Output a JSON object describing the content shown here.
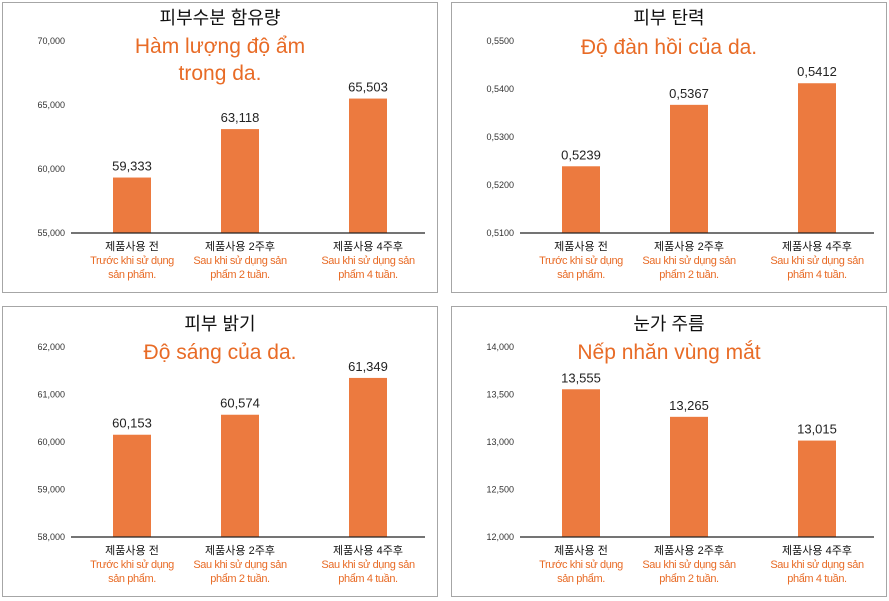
{
  "colors": {
    "bar": "#ec7a3f",
    "title_vi": "#e86b26",
    "axis": "#222222"
  },
  "chart_data": [
    {
      "type": "bar",
      "title": "피부수분 함유량",
      "subtitle": [
        "Hàm lượng độ ẩm",
        "trong da."
      ],
      "categories": [
        {
          "ko": "제품사용 전",
          "vi": [
            "Trước khi sử dụng",
            "sản phẩm."
          ]
        },
        {
          "ko": "제품사용 2주후",
          "vi": [
            "Sau khi sử dụng sản",
            "phẩm 2 tuần."
          ]
        },
        {
          "ko": "제품사용 4주후",
          "vi": [
            "Sau khi sử dụng sản",
            "phẩm 4 tuần."
          ]
        }
      ],
      "values": [
        59333,
        63118,
        65503
      ],
      "value_labels": [
        "59,333",
        "63,118",
        "65,503"
      ],
      "ylim": [
        55000,
        70000
      ],
      "yticks": [
        55000,
        60000,
        65000,
        70000
      ],
      "ytick_labels": [
        "55,000",
        "60,000",
        "65,000",
        "70,000"
      ]
    },
    {
      "type": "bar",
      "title": "피부 탄력",
      "subtitle": [
        "Độ đàn hồi của da."
      ],
      "categories": [
        {
          "ko": "제품사용 전",
          "vi": [
            "Trước khi sử dụng",
            "sản phẩm."
          ]
        },
        {
          "ko": "제품사용 2주후",
          "vi": [
            "Sau khi sử dụng sản",
            "phẩm 2 tuần."
          ]
        },
        {
          "ko": "제품사용 4주후",
          "vi": [
            "Sau khi sử dụng sản",
            "phẩm 4 tuần."
          ]
        }
      ],
      "values": [
        0.5239,
        0.5367,
        0.5412
      ],
      "value_labels": [
        "0,5239",
        "0,5367",
        "0,5412"
      ],
      "ylim": [
        0.51,
        0.55
      ],
      "yticks": [
        0.51,
        0.52,
        0.53,
        0.54,
        0.55
      ],
      "ytick_labels": [
        "0,5100",
        "0,5200",
        "0,5300",
        "0,5400",
        "0,5500"
      ]
    },
    {
      "type": "bar",
      "title": "피부 밝기",
      "subtitle": [
        "Độ sáng của da."
      ],
      "categories": [
        {
          "ko": "제품사용 전",
          "vi": [
            "Trước khi sử dụng",
            "sản phẩm."
          ]
        },
        {
          "ko": "제품사용 2주후",
          "vi": [
            "Sau khi sử dụng sản",
            "phẩm 2 tuần."
          ]
        },
        {
          "ko": "제품사용 4주후",
          "vi": [
            "Sau khi sử dụng sản",
            "phẩm 4 tuần."
          ]
        }
      ],
      "values": [
        60153,
        60574,
        61349
      ],
      "value_labels": [
        "60,153",
        "60,574",
        "61,349"
      ],
      "ylim": [
        58000,
        62000
      ],
      "yticks": [
        58000,
        59000,
        60000,
        61000,
        62000
      ],
      "ytick_labels": [
        "58,000",
        "59,000",
        "60,000",
        "61,000",
        "62,000"
      ]
    },
    {
      "type": "bar",
      "title": "눈가 주름",
      "subtitle": [
        "Nếp nhăn vùng mắt"
      ],
      "categories": [
        {
          "ko": "제품사용 전",
          "vi": [
            "Trước khi sử dụng",
            "sản phẩm."
          ]
        },
        {
          "ko": "제품사용 2주후",
          "vi": [
            "Sau khi sử dụng sản",
            "phẩm 2 tuần."
          ]
        },
        {
          "ko": "제품사용 4주후",
          "vi": [
            "Sau khi sử dụng sản",
            "phẩm 4 tuần."
          ]
        }
      ],
      "values": [
        13555,
        13265,
        13015
      ],
      "value_labels": [
        "13,555",
        "13,265",
        "13,015"
      ],
      "ylim": [
        12000,
        14000
      ],
      "yticks": [
        12000,
        12500,
        13000,
        13500,
        14000
      ],
      "ytick_labels": [
        "12,000",
        "12,500",
        "13,000",
        "13,500",
        "14,000"
      ]
    }
  ]
}
